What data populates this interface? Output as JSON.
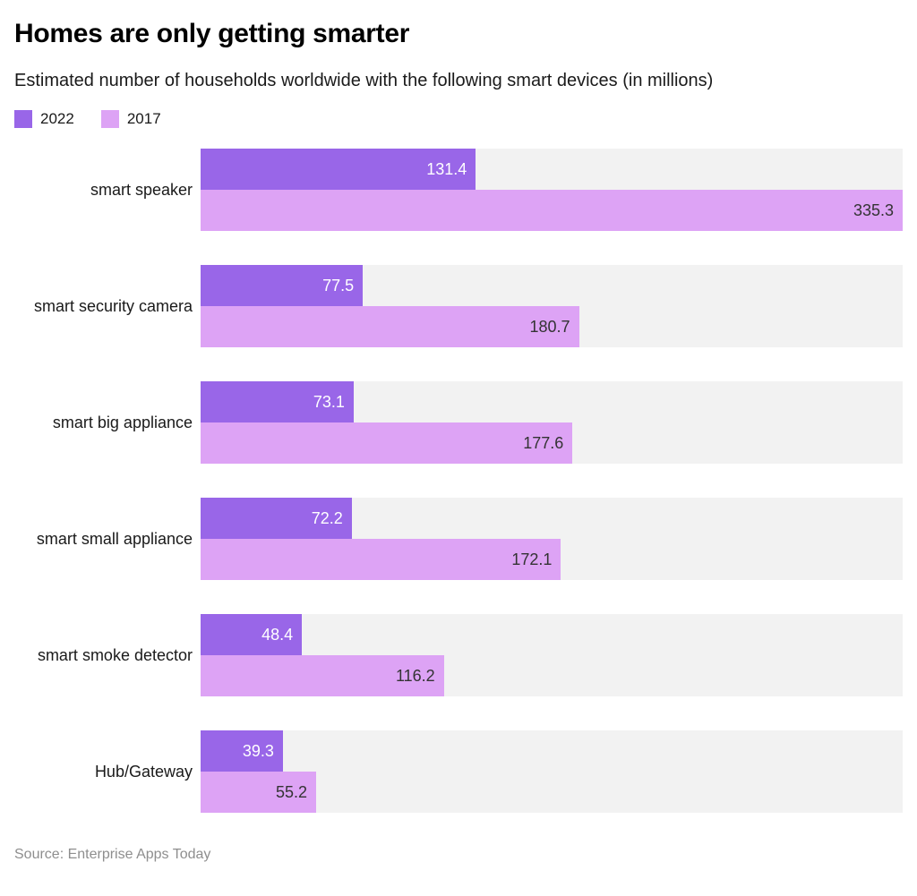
{
  "header": {
    "title": "Homes are only getting smarter",
    "subtitle": "Estimated number of households worldwide with the following smart devices (in millions)"
  },
  "legend": [
    {
      "label": "2022",
      "color": "#9966e8"
    },
    {
      "label": "2017",
      "color": "#dda3f5"
    }
  ],
  "chart_data": {
    "type": "bar",
    "orientation": "horizontal",
    "title": "Homes are only getting smarter",
    "subtitle": "Estimated number of households worldwide with the following smart devices (in millions)",
    "xlabel": "",
    "ylabel": "",
    "xlim": [
      0,
      335.3
    ],
    "grid": false,
    "legend_position": "top-left",
    "value_labels": "inside-end",
    "track_color": "#f2f2f2",
    "categories": [
      "smart speaker",
      "smart security camera",
      "smart big appliance",
      "smart small appliance",
      "smart smoke detector",
      "Hub/Gateway"
    ],
    "series": [
      {
        "name": "2022",
        "color": "#9966e8",
        "label_color": "#ffffff",
        "values": [
          131.4,
          77.5,
          73.1,
          72.2,
          48.4,
          39.3
        ]
      },
      {
        "name": "2017",
        "color": "#dda3f5",
        "label_color": "#333333",
        "values": [
          335.3,
          180.7,
          177.6,
          172.1,
          116.2,
          55.2
        ]
      }
    ]
  },
  "footer": {
    "source": "Source: Enterprise Apps Today"
  }
}
